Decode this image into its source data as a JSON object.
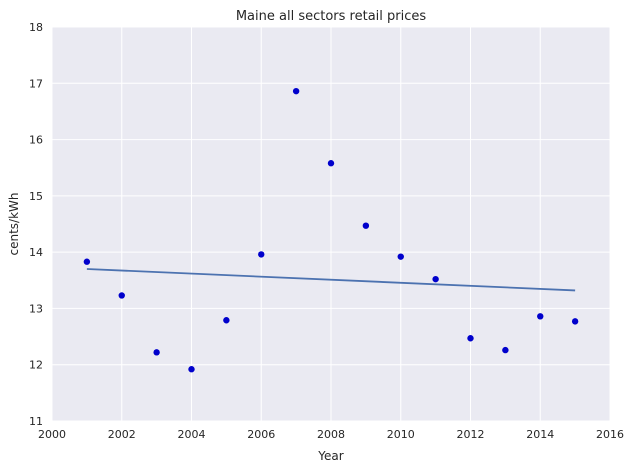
{
  "chart_data": {
    "type": "scatter",
    "title": "Maine   all sectors retail prices",
    "xlabel": "Year",
    "ylabel": "cents/kWh",
    "xlim": [
      2000,
      2016
    ],
    "ylim": [
      11,
      18
    ],
    "xticks": [
      2000,
      2002,
      2004,
      2006,
      2008,
      2010,
      2012,
      2014,
      2016
    ],
    "yticks": [
      11,
      12,
      13,
      14,
      15,
      16,
      17,
      18
    ],
    "grid": true,
    "series": [
      {
        "kind": "scatter",
        "color": "#0000cc",
        "x": [
          2001,
          2002,
          2003,
          2004,
          2005,
          2006,
          2007,
          2008,
          2009,
          2010,
          2011,
          2012,
          2013,
          2014,
          2015
        ],
        "y": [
          13.83,
          13.23,
          12.22,
          11.92,
          12.79,
          13.96,
          16.86,
          15.58,
          14.47,
          13.92,
          13.52,
          12.47,
          12.26,
          12.86,
          12.77
        ]
      },
      {
        "kind": "line",
        "color": "#4c72b0",
        "x": [
          2001,
          2015
        ],
        "y": [
          13.7,
          13.32
        ]
      }
    ],
    "background_color": "#eaeaf2",
    "grid_color": "#ffffff"
  }
}
